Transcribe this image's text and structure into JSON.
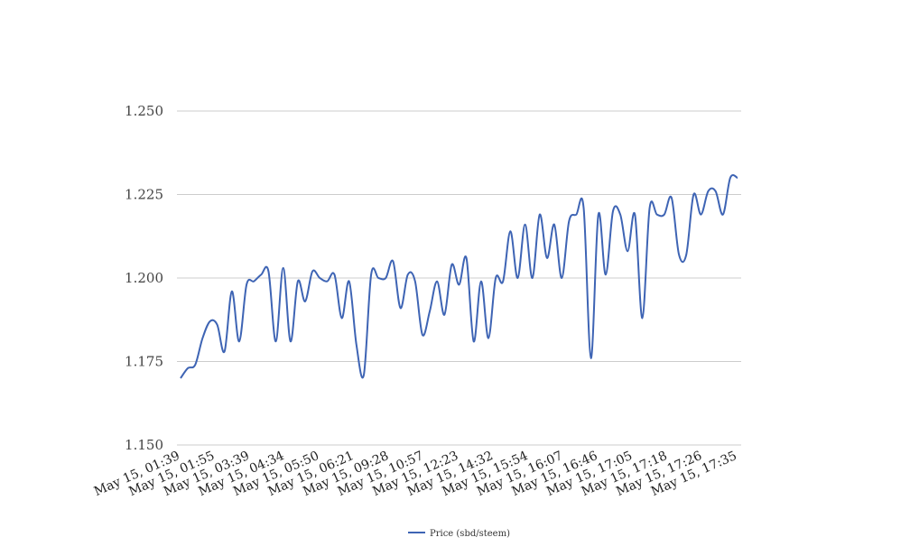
{
  "chart_data": {
    "type": "line",
    "series": [
      {
        "name": "Price (sbd/steem)",
        "color": "#3e64b4",
        "values": [
          1.17,
          1.173,
          1.174,
          1.182,
          1.187,
          1.186,
          1.178,
          1.196,
          1.181,
          1.198,
          1.199,
          1.201,
          1.202,
          1.181,
          1.203,
          1.181,
          1.199,
          1.193,
          1.202,
          1.2,
          1.199,
          1.201,
          1.188,
          1.199,
          1.18,
          1.171,
          1.201,
          1.2,
          1.2,
          1.205,
          1.191,
          1.201,
          1.199,
          1.183,
          1.19,
          1.199,
          1.189,
          1.204,
          1.198,
          1.206,
          1.181,
          1.199,
          1.182,
          1.2,
          1.199,
          1.214,
          1.2,
          1.216,
          1.2,
          1.219,
          1.206,
          1.216,
          1.2,
          1.217,
          1.219,
          1.221,
          1.176,
          1.219,
          1.201,
          1.22,
          1.219,
          1.208,
          1.219,
          1.188,
          1.221,
          1.219,
          1.219,
          1.224,
          1.207,
          1.207,
          1.225,
          1.219,
          1.226,
          1.226,
          1.219,
          1.23,
          1.23
        ]
      }
    ],
    "x_tick_labels": [
      "May 15, 01:39",
      "May 15, 01:55",
      "May 15, 03:39",
      "May 15, 04:34",
      "May 15, 05:50",
      "May 15, 06:21",
      "May 15, 09:28",
      "May 15, 10:57",
      "May 15, 12:23",
      "May 15, 14:32",
      "May 15, 15:54",
      "May 15, 16:07",
      "May 15, 16:46",
      "May 15, 17:05",
      "May 15, 17:18",
      "May 15, 17:26",
      "May 15, 17:35"
    ],
    "y_ticks": [
      "1.150",
      "1.175",
      "1.200",
      "1.225",
      "1.250"
    ],
    "ylim": [
      1.15,
      1.25
    ],
    "grid": "horizontal",
    "legend_position": "bottom",
    "title": "",
    "xlabel": "",
    "ylabel": ""
  }
}
